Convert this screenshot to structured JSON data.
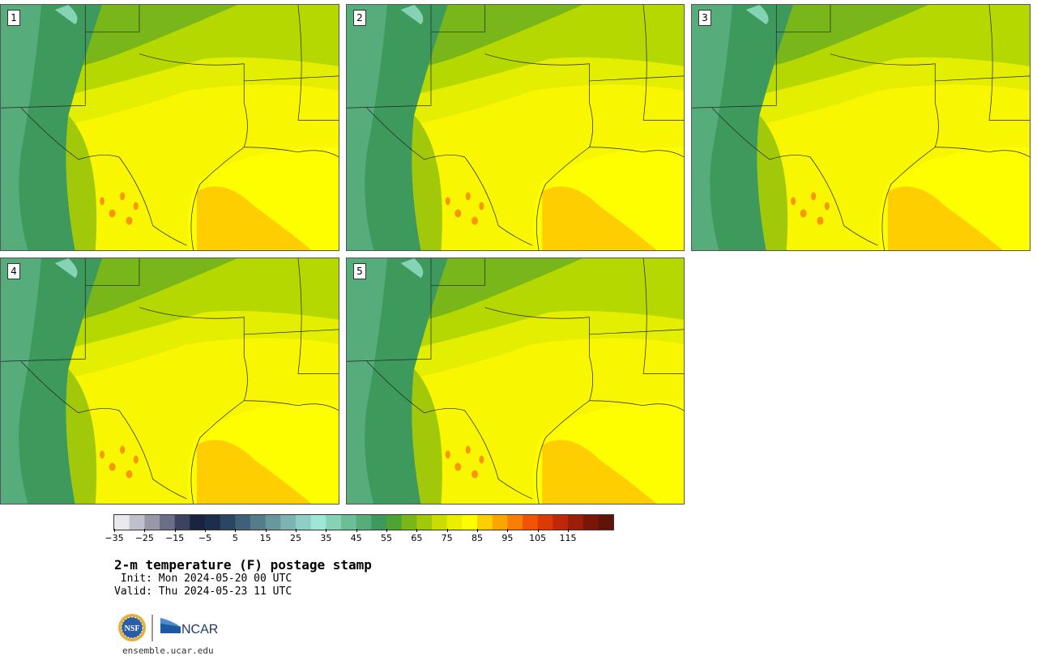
{
  "panels": [
    {
      "label": "1"
    },
    {
      "label": "2"
    },
    {
      "label": "3"
    },
    {
      "label": "4"
    },
    {
      "label": "5"
    }
  ],
  "colorbar": {
    "colors": [
      "#e8e8ee",
      "#c0c0cc",
      "#9898a8",
      "#6a6e86",
      "#3c4260",
      "#1a2440",
      "#1c2e4e",
      "#2a4664",
      "#3e6078",
      "#547c8a",
      "#68989e",
      "#7cb4b4",
      "#8ecec6",
      "#9ee6d6",
      "#86d2b4",
      "#6cbe96",
      "#56ac7a",
      "#3e9a5c",
      "#4ea432",
      "#78b61a",
      "#a2c80a",
      "#cadc00",
      "#ecee00",
      "#fefe00",
      "#fece00",
      "#fca400",
      "#f87e08",
      "#f25406",
      "#dc3a04",
      "#be2808",
      "#9a1e08",
      "#7a1606",
      "#601408"
    ],
    "tick_labels": [
      "−35",
      "−25",
      "−15",
      "−5",
      "5",
      "15",
      "25",
      "35",
      "45",
      "55",
      "65",
      "75",
      "85",
      "95",
      "105",
      "115"
    ]
  },
  "title": "2-m temperature (F) postage stamp",
  "init": " Init: Mon 2024-05-20 00 UTC",
  "valid": "Valid: Thu 2024-05-23 11 UTC",
  "logos": {
    "nsf": "NSF",
    "ncar": "NCAR"
  },
  "site": "ensemble.ucar.edu"
}
